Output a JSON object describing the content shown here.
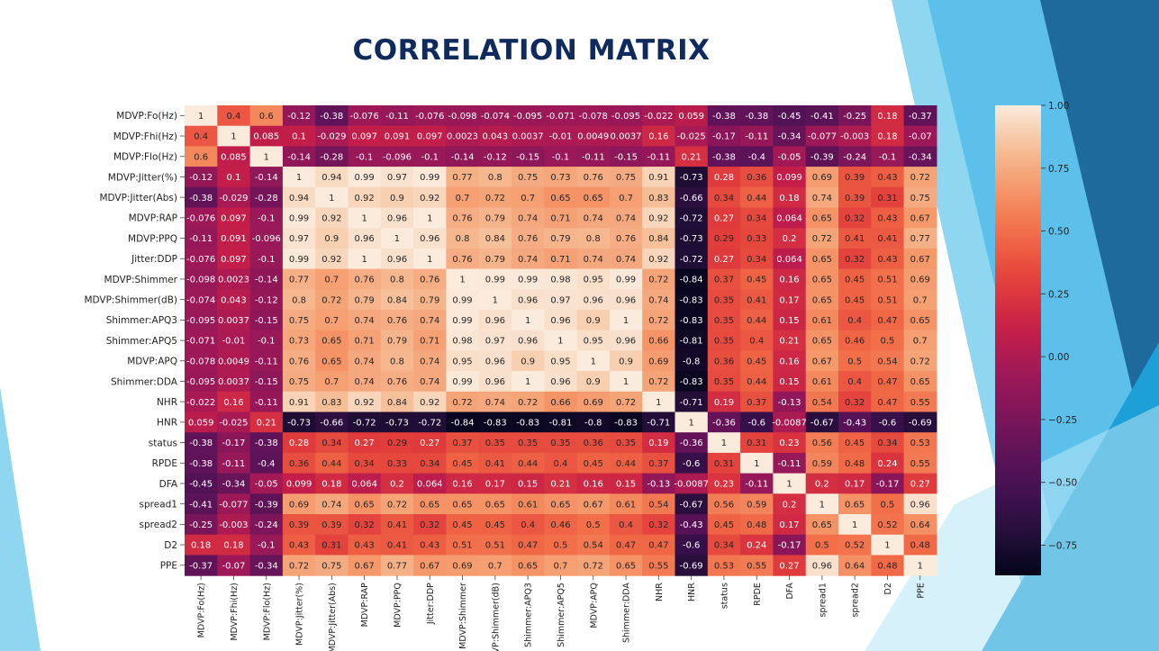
{
  "slide": {
    "title": "CORRELATION MATRIX"
  },
  "colors": {
    "title": "#0f2a5c",
    "accent_blue": "#29a8df",
    "light_blue": "#7fd0ef",
    "dark_blue": "#1f5f8f"
  },
  "chart_data": {
    "type": "heatmap",
    "labels": [
      "MDVP:Fo(Hz)",
      "MDVP:Fhi(Hz)",
      "MDVP:Flo(Hz)",
      "MDVP:Jitter(%)",
      "MDVP:Jitter(Abs)",
      "MDVP:RAP",
      "MDVP:PPQ",
      "Jitter:DDP",
      "MDVP:Shimmer",
      "MDVP:Shimmer(dB)",
      "Shimmer:APQ3",
      "Shimmer:APQ5",
      "MDVP:APQ",
      "Shimmer:DDA",
      "NHR",
      "HNR",
      "status",
      "RPDE",
      "DFA",
      "spread1",
      "spread2",
      "D2",
      "PPE"
    ],
    "cells": [
      [
        "1",
        "0.4",
        "0.6",
        "-0.12",
        "-0.38",
        "-0.076",
        "-0.11",
        "-0.076",
        "-0.098",
        "-0.074",
        "-0.095",
        "-0.071",
        "-0.078",
        "-0.095",
        "-0.022",
        "0.059",
        "-0.38",
        "-0.38",
        "-0.45",
        "-0.41",
        "-0.25",
        "0.18",
        "-0.37"
      ],
      [
        "0.4",
        "1",
        "0.085",
        "0.1",
        "-0.029",
        "0.097",
        "0.091",
        "0.097",
        "0.0023",
        "0.043",
        "0.0037",
        "-0.01",
        "0.0049",
        "0.0037",
        "0.16",
        "-0.025",
        "-0.17",
        "-0.11",
        "-0.34",
        "-0.077",
        "-0.003",
        "0.18",
        "-0.07"
      ],
      [
        "0.6",
        "0.085",
        "1",
        "-0.14",
        "-0.28",
        "-0.1",
        "-0.096",
        "-0.1",
        "-0.14",
        "-0.12",
        "-0.15",
        "-0.1",
        "-0.11",
        "-0.15",
        "-0.11",
        "0.21",
        "-0.38",
        "-0.4",
        "-0.05",
        "-0.39",
        "-0.24",
        "-0.1",
        "-0.34"
      ],
      [
        "-0.12",
        "0.1",
        "-0.14",
        "1",
        "0.94",
        "0.99",
        "0.97",
        "0.99",
        "0.77",
        "0.8",
        "0.75",
        "0.73",
        "0.76",
        "0.75",
        "0.91",
        "-0.73",
        "0.28",
        "0.36",
        "0.099",
        "0.69",
        "0.39",
        "0.43",
        "0.72"
      ],
      [
        "-0.38",
        "-0.029",
        "-0.28",
        "0.94",
        "1",
        "0.92",
        "0.9",
        "0.92",
        "0.7",
        "0.72",
        "0.7",
        "0.65",
        "0.65",
        "0.7",
        "0.83",
        "-0.66",
        "0.34",
        "0.44",
        "0.18",
        "0.74",
        "0.39",
        "0.31",
        "0.75"
      ],
      [
        "-0.076",
        "0.097",
        "-0.1",
        "0.99",
        "0.92",
        "1",
        "0.96",
        "1",
        "0.76",
        "0.79",
        "0.74",
        "0.71",
        "0.74",
        "0.74",
        "0.92",
        "-0.72",
        "0.27",
        "0.34",
        "0.064",
        "0.65",
        "0.32",
        "0.43",
        "0.67"
      ],
      [
        "-0.11",
        "0.091",
        "-0.096",
        "0.97",
        "0.9",
        "0.96",
        "1",
        "0.96",
        "0.8",
        "0.84",
        "0.76",
        "0.79",
        "0.8",
        "0.76",
        "0.84",
        "-0.73",
        "0.29",
        "0.33",
        "0.2",
        "0.72",
        "0.41",
        "0.41",
        "0.77"
      ],
      [
        "-0.076",
        "0.097",
        "-0.1",
        "0.99",
        "0.92",
        "1",
        "0.96",
        "1",
        "0.76",
        "0.79",
        "0.74",
        "0.71",
        "0.74",
        "0.74",
        "0.92",
        "-0.72",
        "0.27",
        "0.34",
        "0.064",
        "0.65",
        "0.32",
        "0.43",
        "0.67"
      ],
      [
        "-0.098",
        "0.0023",
        "-0.14",
        "0.77",
        "0.7",
        "0.76",
        "0.8",
        "0.76",
        "1",
        "0.99",
        "0.99",
        "0.98",
        "0.95",
        "0.99",
        "0.72",
        "-0.84",
        "0.37",
        "0.45",
        "0.16",
        "0.65",
        "0.45",
        "0.51",
        "0.69"
      ],
      [
        "-0.074",
        "0.043",
        "-0.12",
        "0.8",
        "0.72",
        "0.79",
        "0.84",
        "0.79",
        "0.99",
        "1",
        "0.96",
        "0.97",
        "0.96",
        "0.96",
        "0.74",
        "-0.83",
        "0.35",
        "0.41",
        "0.17",
        "0.65",
        "0.45",
        "0.51",
        "0.7"
      ],
      [
        "-0.095",
        "0.0037",
        "-0.15",
        "0.75",
        "0.7",
        "0.74",
        "0.76",
        "0.74",
        "0.99",
        "0.96",
        "1",
        "0.96",
        "0.9",
        "1",
        "0.72",
        "-0.83",
        "0.35",
        "0.44",
        "0.15",
        "0.61",
        "0.4",
        "0.47",
        "0.65"
      ],
      [
        "-0.071",
        "-0.01",
        "-0.1",
        "0.73",
        "0.65",
        "0.71",
        "0.79",
        "0.71",
        "0.98",
        "0.97",
        "0.96",
        "1",
        "0.95",
        "0.96",
        "0.66",
        "-0.81",
        "0.35",
        "0.4",
        "0.21",
        "0.65",
        "0.46",
        "0.5",
        "0.7"
      ],
      [
        "-0.078",
        "0.0049",
        "-0.11",
        "0.76",
        "0.65",
        "0.74",
        "0.8",
        "0.74",
        "0.95",
        "0.96",
        "0.9",
        "0.95",
        "1",
        "0.9",
        "0.69",
        "-0.8",
        "0.36",
        "0.45",
        "0.16",
        "0.67",
        "0.5",
        "0.54",
        "0.72"
      ],
      [
        "-0.095",
        "0.0037",
        "-0.15",
        "0.75",
        "0.7",
        "0.74",
        "0.76",
        "0.74",
        "0.99",
        "0.96",
        "1",
        "0.96",
        "0.9",
        "1",
        "0.72",
        "-0.83",
        "0.35",
        "0.44",
        "0.15",
        "0.61",
        "0.4",
        "0.47",
        "0.65"
      ],
      [
        "-0.022",
        "0.16",
        "-0.11",
        "0.91",
        "0.83",
        "0.92",
        "0.84",
        "0.92",
        "0.72",
        "0.74",
        "0.72",
        "0.66",
        "0.69",
        "0.72",
        "1",
        "-0.71",
        "0.19",
        "0.37",
        "-0.13",
        "0.54",
        "0.32",
        "0.47",
        "0.55"
      ],
      [
        "0.059",
        "-0.025",
        "0.21",
        "-0.73",
        "-0.66",
        "-0.72",
        "-0.73",
        "-0.72",
        "-0.84",
        "-0.83",
        "-0.83",
        "-0.81",
        "-0.8",
        "-0.83",
        "-0.71",
        "1",
        "-0.36",
        "-0.6",
        "-0.0087",
        "-0.67",
        "-0.43",
        "-0.6",
        "-0.69"
      ],
      [
        "-0.38",
        "-0.17",
        "-0.38",
        "0.28",
        "0.34",
        "0.27",
        "0.29",
        "0.27",
        "0.37",
        "0.35",
        "0.35",
        "0.35",
        "0.36",
        "0.35",
        "0.19",
        "-0.36",
        "1",
        "0.31",
        "0.23",
        "0.56",
        "0.45",
        "0.34",
        "0.53"
      ],
      [
        "-0.38",
        "-0.11",
        "-0.4",
        "0.36",
        "0.44",
        "0.34",
        "0.33",
        "0.34",
        "0.45",
        "0.41",
        "0.44",
        "0.4",
        "0.45",
        "0.44",
        "0.37",
        "-0.6",
        "0.31",
        "1",
        "-0.11",
        "0.59",
        "0.48",
        "0.24",
        "0.55"
      ],
      [
        "-0.45",
        "-0.34",
        "-0.05",
        "0.099",
        "0.18",
        "0.064",
        "0.2",
        "0.064",
        "0.16",
        "0.17",
        "0.15",
        "0.21",
        "0.16",
        "0.15",
        "-0.13",
        "-0.0087",
        "0.23",
        "-0.11",
        "1",
        "0.2",
        "0.17",
        "-0.17",
        "0.27"
      ],
      [
        "-0.41",
        "-0.077",
        "-0.39",
        "0.69",
        "0.74",
        "0.65",
        "0.72",
        "0.65",
        "0.65",
        "0.65",
        "0.61",
        "0.65",
        "0.67",
        "0.61",
        "0.54",
        "-0.67",
        "0.56",
        "0.59",
        "0.2",
        "1",
        "0.65",
        "0.5",
        "0.96"
      ],
      [
        "-0.25",
        "-0.003",
        "-0.24",
        "0.39",
        "0.39",
        "0.32",
        "0.41",
        "0.32",
        "0.45",
        "0.45",
        "0.4",
        "0.46",
        "0.5",
        "0.4",
        "0.32",
        "-0.43",
        "0.45",
        "0.48",
        "0.17",
        "0.65",
        "1",
        "0.52",
        "0.64"
      ],
      [
        "0.18",
        "0.18",
        "-0.1",
        "0.43",
        "0.31",
        "0.43",
        "0.41",
        "0.43",
        "0.51",
        "0.51",
        "0.47",
        "0.5",
        "0.54",
        "0.47",
        "0.47",
        "-0.6",
        "0.34",
        "0.24",
        "-0.17",
        "0.5",
        "0.52",
        "1",
        "0.48"
      ],
      [
        "-0.37",
        "-0.07",
        "-0.34",
        "0.72",
        "0.75",
        "0.67",
        "0.77",
        "0.67",
        "0.69",
        "0.7",
        "0.65",
        "0.7",
        "0.72",
        "0.65",
        "0.55",
        "-0.69",
        "0.53",
        "0.55",
        "0.27",
        "0.96",
        "0.64",
        "0.48",
        "1"
      ]
    ],
    "colorbar": {
      "range": [
        -0.87,
        1.0
      ],
      "ticks": [
        1.0,
        0.75,
        0.5,
        0.25,
        0.0,
        -0.25,
        -0.5,
        -0.75
      ],
      "tick_labels": [
        "1.00",
        "0.75",
        "0.50",
        "0.25",
        "0.00",
        "−0.25",
        "−0.50",
        "−0.75"
      ],
      "colormap": "rocket"
    }
  }
}
